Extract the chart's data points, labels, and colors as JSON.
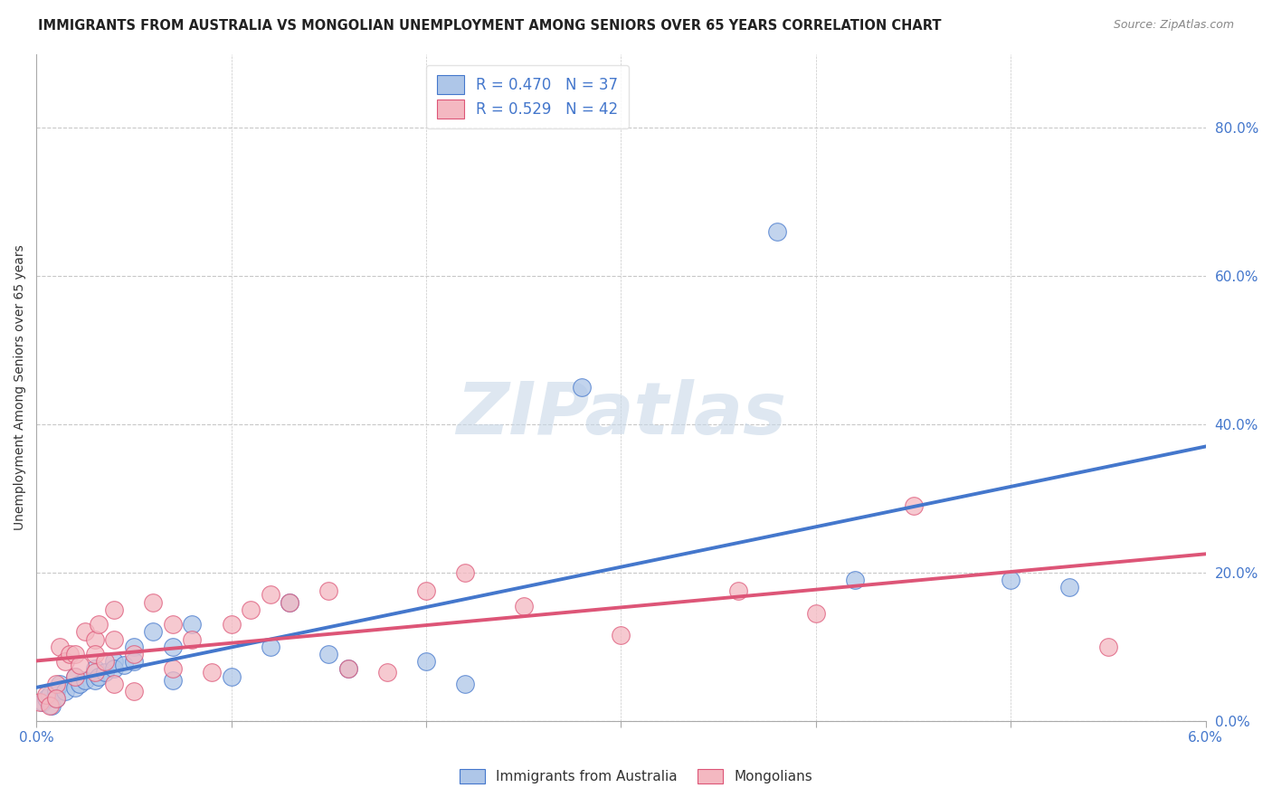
{
  "title": "IMMIGRANTS FROM AUSTRALIA VS MONGOLIAN UNEMPLOYMENT AMONG SENIORS OVER 65 YEARS CORRELATION CHART",
  "source": "Source: ZipAtlas.com",
  "ylabel": "Unemployment Among Seniors over 65 years",
  "right_yticks": [
    "0.0%",
    "20.0%",
    "40.0%",
    "60.0%",
    "80.0%"
  ],
  "right_ytick_vals": [
    0.0,
    0.2,
    0.4,
    0.6,
    0.8
  ],
  "xlim": [
    0.0,
    0.06
  ],
  "ylim": [
    0.0,
    0.9
  ],
  "watermark": "ZIPatlas",
  "legend": {
    "series1_label": "R = 0.470   N = 37",
    "series2_label": "R = 0.529   N = 42",
    "series1_color": "#aec6e8",
    "series2_color": "#f4b8c1"
  },
  "blue_scatter": [
    [
      0.0003,
      0.025
    ],
    [
      0.0005,
      0.03
    ],
    [
      0.0007,
      0.035
    ],
    [
      0.0008,
      0.02
    ],
    [
      0.001,
      0.04
    ],
    [
      0.001,
      0.03
    ],
    [
      0.0012,
      0.05
    ],
    [
      0.0015,
      0.04
    ],
    [
      0.002,
      0.06
    ],
    [
      0.002,
      0.045
    ],
    [
      0.0022,
      0.05
    ],
    [
      0.0025,
      0.055
    ],
    [
      0.003,
      0.07
    ],
    [
      0.003,
      0.055
    ],
    [
      0.0032,
      0.06
    ],
    [
      0.0035,
      0.065
    ],
    [
      0.004,
      0.08
    ],
    [
      0.004,
      0.07
    ],
    [
      0.0045,
      0.075
    ],
    [
      0.005,
      0.1
    ],
    [
      0.005,
      0.08
    ],
    [
      0.006,
      0.12
    ],
    [
      0.007,
      0.1
    ],
    [
      0.007,
      0.055
    ],
    [
      0.008,
      0.13
    ],
    [
      0.01,
      0.06
    ],
    [
      0.012,
      0.1
    ],
    [
      0.013,
      0.16
    ],
    [
      0.015,
      0.09
    ],
    [
      0.016,
      0.07
    ],
    [
      0.02,
      0.08
    ],
    [
      0.022,
      0.05
    ],
    [
      0.028,
      0.45
    ],
    [
      0.038,
      0.66
    ],
    [
      0.042,
      0.19
    ],
    [
      0.05,
      0.19
    ],
    [
      0.053,
      0.18
    ]
  ],
  "pink_scatter": [
    [
      0.0002,
      0.025
    ],
    [
      0.0005,
      0.035
    ],
    [
      0.0007,
      0.02
    ],
    [
      0.001,
      0.05
    ],
    [
      0.001,
      0.03
    ],
    [
      0.0012,
      0.1
    ],
    [
      0.0015,
      0.08
    ],
    [
      0.0017,
      0.09
    ],
    [
      0.002,
      0.09
    ],
    [
      0.002,
      0.06
    ],
    [
      0.0022,
      0.075
    ],
    [
      0.0025,
      0.12
    ],
    [
      0.003,
      0.065
    ],
    [
      0.003,
      0.11
    ],
    [
      0.003,
      0.09
    ],
    [
      0.0032,
      0.13
    ],
    [
      0.0035,
      0.08
    ],
    [
      0.004,
      0.15
    ],
    [
      0.004,
      0.05
    ],
    [
      0.004,
      0.11
    ],
    [
      0.005,
      0.04
    ],
    [
      0.005,
      0.09
    ],
    [
      0.006,
      0.16
    ],
    [
      0.007,
      0.13
    ],
    [
      0.007,
      0.07
    ],
    [
      0.008,
      0.11
    ],
    [
      0.009,
      0.065
    ],
    [
      0.01,
      0.13
    ],
    [
      0.011,
      0.15
    ],
    [
      0.012,
      0.17
    ],
    [
      0.013,
      0.16
    ],
    [
      0.015,
      0.175
    ],
    [
      0.016,
      0.07
    ],
    [
      0.018,
      0.065
    ],
    [
      0.02,
      0.175
    ],
    [
      0.022,
      0.2
    ],
    [
      0.025,
      0.155
    ],
    [
      0.03,
      0.115
    ],
    [
      0.036,
      0.175
    ],
    [
      0.04,
      0.145
    ],
    [
      0.045,
      0.29
    ],
    [
      0.055,
      0.1
    ]
  ],
  "blue_line_color": "#4477cc",
  "pink_line_color": "#dd5577",
  "grid_color": "#c8c8c8",
  "background_color": "#ffffff",
  "title_fontsize": 11,
  "axis_label_color": "#4477cc",
  "watermark_color": "#c8d8e8",
  "xtick_vals": [
    0.0,
    0.01,
    0.02,
    0.03,
    0.04,
    0.05,
    0.06
  ],
  "bottom_legend_labels": [
    "Immigrants from Australia",
    "Mongolians"
  ]
}
